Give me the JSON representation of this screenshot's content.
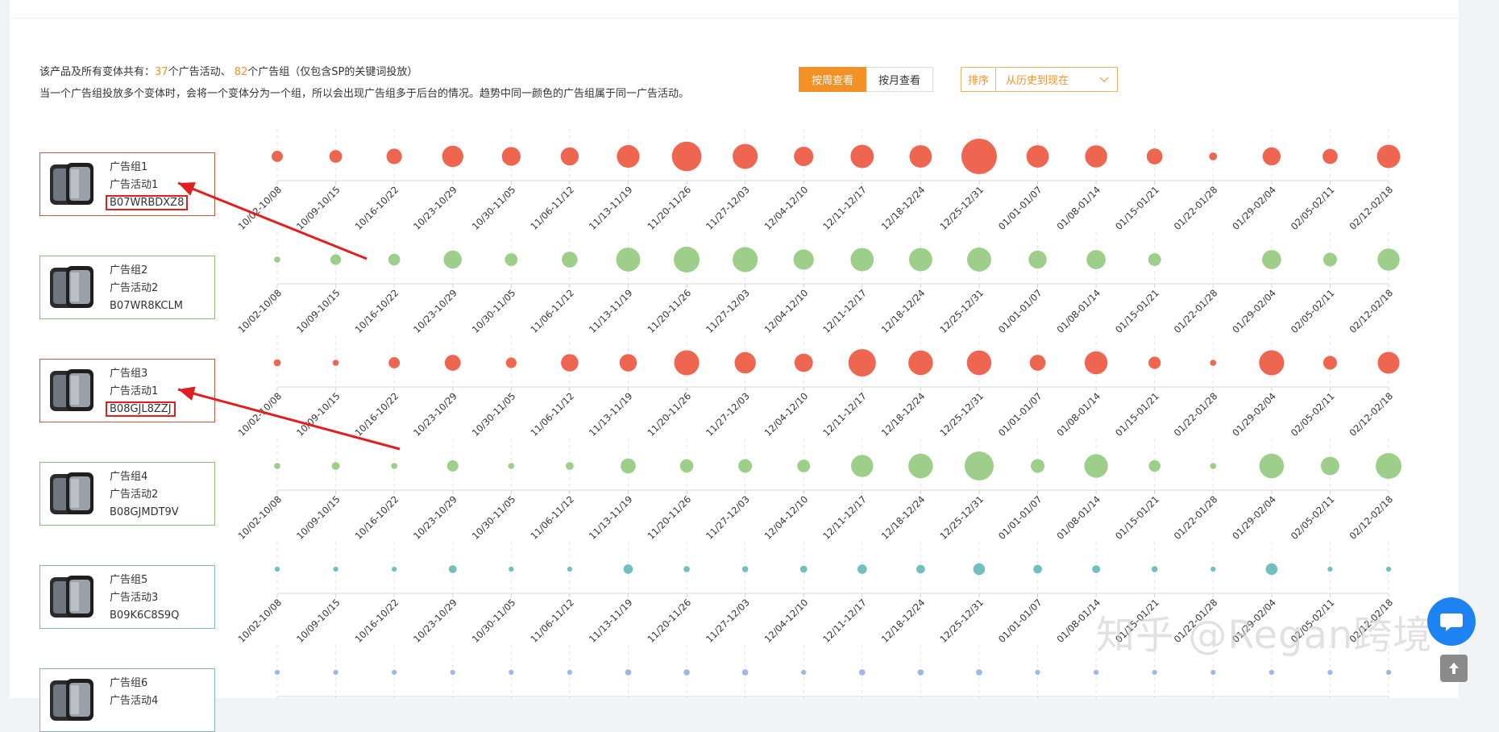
{
  "summary": {
    "prefix": "该产品及所有变体共有：",
    "campaign_count": "37",
    "campaign_suffix": "个广告活动、",
    "adgroup_count": "82",
    "adgroup_suffix": "个广告组（仅包含SP的关键词投放）",
    "line2": "当一个广告组投放多个变体时，会将一个变体分为一个组，所以会出现广告组多于后台的情况。趋势中同一颜色的广告组属于同一广告活动。"
  },
  "view_toggle": {
    "weekly_label": "按周查看",
    "monthly_label": "按月查看",
    "active": "weekly"
  },
  "sort": {
    "label": "排序",
    "selected": "从历史到现在"
  },
  "colors": {
    "campaign1": "#ee6650",
    "campaign2": "#9dcf8a",
    "campaign3": "#72c0be",
    "campaign4": "#9bb8e8",
    "accent": "#f29126",
    "highlight_box": "#e02020",
    "arrow": "#e02020"
  },
  "adgroups": [
    {
      "group": "广告组1",
      "campaign": "广告活动1",
      "asin": "B07WRBDXZ8",
      "asin_highlighted": true,
      "color_key": "campaign1",
      "border": "#c9583f"
    },
    {
      "group": "广告组2",
      "campaign": "广告活动2",
      "asin": "B07WR8KCLM",
      "asin_highlighted": false,
      "color_key": "campaign2",
      "border": "#8fbc79"
    },
    {
      "group": "广告组3",
      "campaign": "广告活动1",
      "asin": "B08GJL8ZZJ",
      "asin_highlighted": true,
      "color_key": "campaign1",
      "border": "#c9583f"
    },
    {
      "group": "广告组4",
      "campaign": "广告活动2",
      "asin": "B08GJMDT9V",
      "asin_highlighted": false,
      "color_key": "campaign2",
      "border": "#8fbc79"
    },
    {
      "group": "广告组5",
      "campaign": "广告活动3",
      "asin": "B09K6C8S9Q",
      "asin_highlighted": false,
      "color_key": "campaign3",
      "border": "#7fb7c3"
    },
    {
      "group": "广告组6",
      "campaign": "广告活动4",
      "asin": "",
      "asin_highlighted": false,
      "color_key": "campaign4",
      "border": "#7fb7c3"
    }
  ],
  "chart_data": {
    "type": "scatter",
    "encoding": "bubble size = relative weekly volume (0-10 scale)",
    "categories": [
      "10/02-10/08",
      "10/09-10/15",
      "10/16-10/22",
      "10/23-10/29",
      "10/30-11/05",
      "11/06-11/12",
      "11/13-11/19",
      "11/20-11/26",
      "11/27-12/03",
      "12/04-12/10",
      "12/11-12/17",
      "12/18-12/24",
      "12/25-12/31",
      "01/01-01/07",
      "01/08-01/14",
      "01/15-01/21",
      "01/22-01/28",
      "01/29-02/04",
      "02/05-02/11",
      "02/12-02/18"
    ],
    "size_range": [
      0,
      10
    ],
    "series": [
      {
        "name": "广告组1",
        "color_key": "campaign1",
        "values": [
          1.0,
          1.3,
          1.9,
          3.6,
          2.8,
          2.6,
          4.1,
          7.0,
          5.0,
          3.0,
          4.3,
          4.0,
          10.0,
          4.0,
          3.9,
          2.0,
          0.5,
          2.6,
          1.8,
          4.3
        ]
      },
      {
        "name": "广告组2",
        "color_key": "campaign2",
        "values": [
          0.3,
          0.9,
          1.1,
          2.6,
          1.3,
          2.0,
          4.6,
          5.3,
          5.0,
          3.3,
          4.3,
          4.3,
          4.6,
          2.6,
          2.9,
          1.3,
          0,
          2.9,
          1.5,
          3.9
        ]
      },
      {
        "name": "广告组3",
        "color_key": "campaign1",
        "values": [
          0.4,
          0.3,
          1.0,
          2.0,
          0.9,
          2.4,
          2.4,
          5.0,
          3.6,
          2.7,
          6.0,
          4.8,
          4.8,
          2.0,
          4.2,
          1.2,
          0.3,
          5.0,
          1.5,
          3.8
        ]
      },
      {
        "name": "广告组4",
        "color_key": "campaign2",
        "values": [
          0.3,
          0.5,
          0.3,
          1.0,
          0.3,
          0.5,
          1.8,
          1.4,
          1.5,
          1.3,
          3.9,
          4.8,
          6.7,
          1.5,
          4.4,
          1.1,
          0.3,
          4.8,
          2.7,
          5.3
        ]
      },
      {
        "name": "广告组5",
        "color_key": "campaign3",
        "values": [
          0.2,
          0.2,
          0.2,
          0.5,
          0.2,
          0.2,
          0.7,
          0.3,
          0.3,
          0.4,
          0.7,
          0.6,
          1.1,
          0.6,
          0.5,
          0.3,
          0.2,
          1.1,
          0.2,
          0.2
        ]
      },
      {
        "name": "广告组6",
        "color_key": "campaign4",
        "values": [
          0.2,
          0.2,
          0.2,
          0.2,
          0.2,
          0.2,
          0.3,
          0.3,
          0.3,
          0.2,
          0.3,
          0.3,
          0.3,
          0.2,
          0.2,
          0.2,
          0.2,
          0.2,
          0.2,
          0.2
        ]
      }
    ],
    "grid": true
  },
  "watermark": "知乎 @Regan跨境",
  "icons": {
    "fab": "chat-bubble-icon",
    "totop": "arrow-up-icon"
  }
}
